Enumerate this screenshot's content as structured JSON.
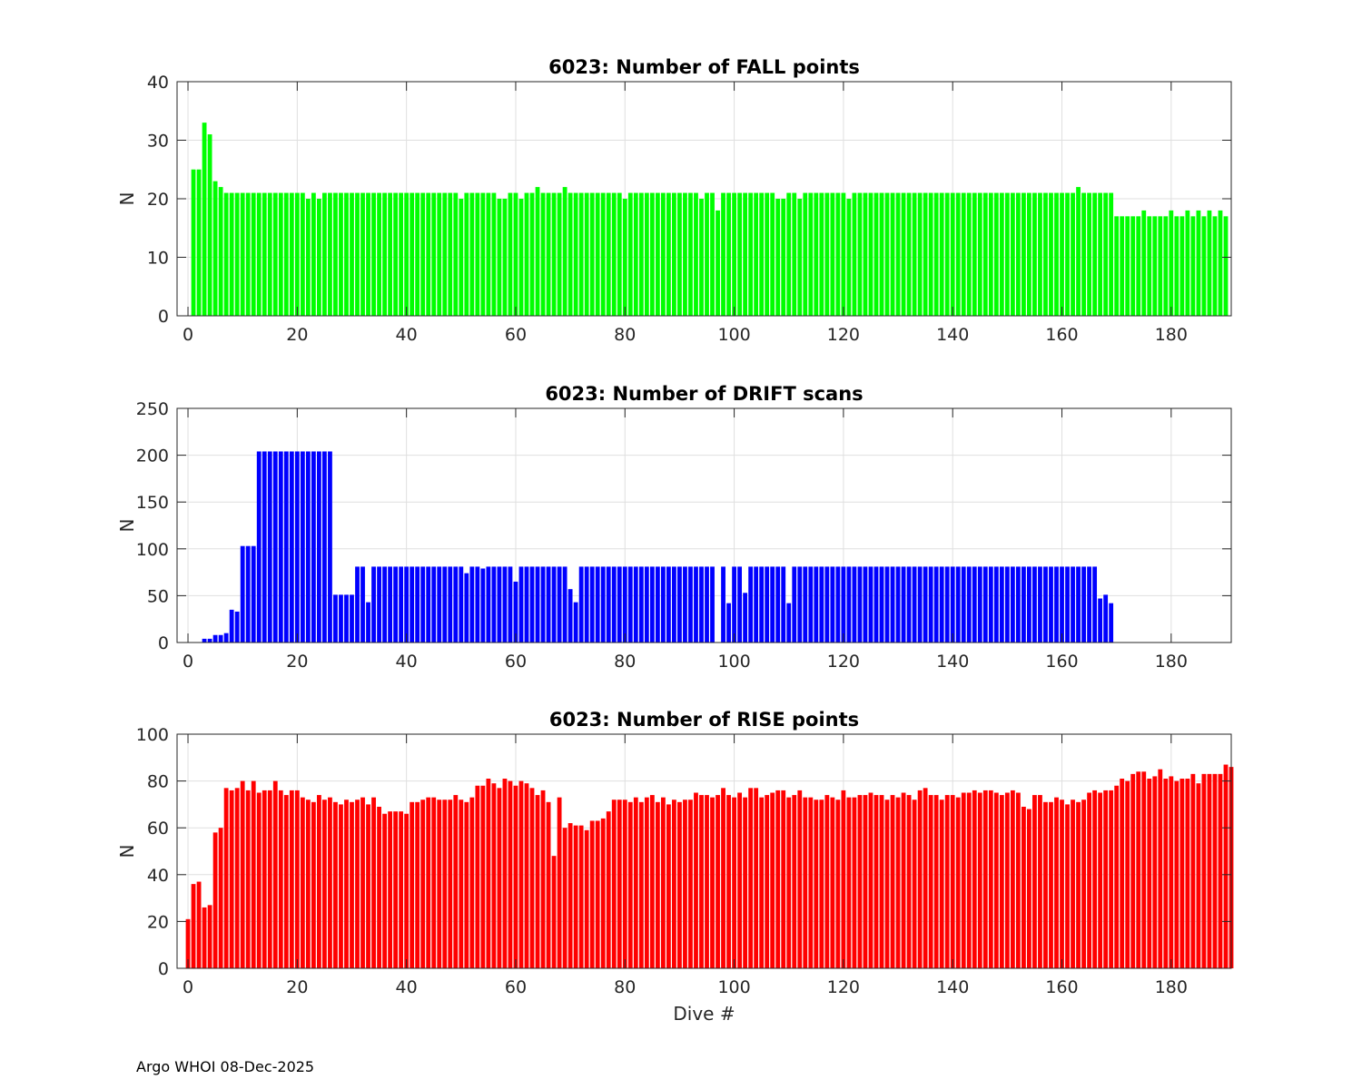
{
  "footer": "Argo WHOI 08-Dec-2025",
  "chart_data": [
    {
      "type": "bar",
      "title": "6023: Number of FALL points",
      "xlabel": "",
      "ylabel": "N",
      "xlim": [
        -2,
        191
      ],
      "ylim": [
        0,
        40
      ],
      "xticks": [
        0,
        20,
        40,
        60,
        80,
        100,
        120,
        140,
        160,
        180
      ],
      "yticks": [
        0,
        10,
        20,
        30,
        40
      ],
      "grid": true,
      "color": "#00ff00",
      "x_start": 1,
      "values": [
        25,
        25,
        33,
        31,
        23,
        22,
        21,
        21,
        21,
        21,
        21,
        21,
        21,
        21,
        21,
        21,
        21,
        21,
        21,
        21,
        21,
        20,
        21,
        20,
        21,
        21,
        21,
        21,
        21,
        21,
        21,
        21,
        21,
        21,
        21,
        21,
        21,
        21,
        21,
        21,
        21,
        21,
        21,
        21,
        21,
        21,
        21,
        21,
        21,
        20,
        21,
        21,
        21,
        21,
        21,
        21,
        20,
        20,
        21,
        21,
        20,
        21,
        21,
        22,
        21,
        21,
        21,
        21,
        22,
        21,
        21,
        21,
        21,
        21,
        21,
        21,
        21,
        21,
        21,
        20,
        21,
        21,
        21,
        21,
        21,
        21,
        21,
        21,
        21,
        21,
        21,
        21,
        21,
        20,
        21,
        21,
        18,
        21,
        21,
        21,
        21,
        21,
        21,
        21,
        21,
        21,
        21,
        20,
        20,
        21,
        21,
        20,
        21,
        21,
        21,
        21,
        21,
        21,
        21,
        21,
        20,
        21,
        21,
        21,
        21,
        21,
        21,
        21,
        21,
        21,
        21,
        21,
        21,
        21,
        21,
        21,
        21,
        21,
        21,
        21,
        21,
        21,
        21,
        21,
        21,
        21,
        21,
        21,
        21,
        21,
        21,
        21,
        21,
        21,
        21,
        21,
        21,
        21,
        21,
        21,
        21,
        21,
        22,
        21,
        21,
        21,
        21,
        21,
        21,
        17,
        17,
        17,
        17,
        17,
        18,
        17,
        17,
        17,
        17,
        18,
        17,
        17,
        18,
        17,
        18,
        17,
        18,
        17,
        18,
        17
      ]
    },
    {
      "type": "bar",
      "title": "6023: Number of DRIFT scans",
      "xlabel": "",
      "ylabel": "N",
      "xlim": [
        -2,
        191
      ],
      "ylim": [
        0,
        250
      ],
      "xticks": [
        0,
        20,
        40,
        60,
        80,
        100,
        120,
        140,
        160,
        180
      ],
      "yticks": [
        0,
        50,
        100,
        150,
        200,
        250
      ],
      "grid": true,
      "color": "#0000ff",
      "x_start": 1,
      "values": [
        0,
        0,
        4,
        4,
        8,
        8,
        10,
        35,
        33,
        103,
        103,
        103,
        204,
        204,
        204,
        204,
        204,
        204,
        204,
        204,
        204,
        204,
        204,
        204,
        204,
        204,
        51,
        51,
        51,
        51,
        81,
        81,
        43,
        81,
        81,
        81,
        81,
        81,
        81,
        81,
        81,
        81,
        81,
        81,
        81,
        81,
        81,
        81,
        81,
        81,
        74,
        81,
        81,
        79,
        81,
        81,
        81,
        81,
        81,
        65,
        81,
        81,
        81,
        81,
        81,
        81,
        81,
        81,
        81,
        57,
        43,
        81,
        81,
        81,
        81,
        81,
        81,
        81,
        81,
        81,
        81,
        81,
        81,
        81,
        81,
        81,
        81,
        81,
        81,
        81,
        81,
        81,
        81,
        81,
        81,
        81,
        0,
        81,
        42,
        81,
        81,
        53,
        81,
        81,
        81,
        81,
        81,
        81,
        81,
        42,
        81,
        81,
        81,
        81,
        81,
        81,
        81,
        81,
        81,
        81,
        81,
        81,
        81,
        81,
        81,
        81,
        81,
        81,
        81,
        81,
        81,
        81,
        81,
        81,
        81,
        81,
        81,
        81,
        81,
        81,
        81,
        81,
        81,
        81,
        81,
        81,
        81,
        81,
        81,
        81,
        81,
        81,
        81,
        81,
        81,
        81,
        81,
        81,
        81,
        81,
        81,
        81,
        81,
        81,
        81,
        81,
        47,
        51,
        42
      ]
    },
    {
      "type": "bar",
      "title": "6023: Number of RISE points",
      "xlabel": "Dive #",
      "ylabel": "N",
      "xlim": [
        -2,
        191
      ],
      "ylim": [
        0,
        100
      ],
      "xticks": [
        0,
        20,
        40,
        60,
        80,
        100,
        120,
        140,
        160,
        180
      ],
      "yticks": [
        0,
        20,
        40,
        60,
        80,
        100
      ],
      "grid": true,
      "color": "#ff0000",
      "x_start": 0,
      "values": [
        21,
        36,
        37,
        26,
        27,
        58,
        60,
        77,
        76,
        77,
        80,
        76,
        80,
        75,
        76,
        76,
        80,
        76,
        74,
        76,
        76,
        73,
        72,
        71,
        74,
        72,
        73,
        71,
        70,
        72,
        71,
        72,
        73,
        70,
        73,
        69,
        66,
        67,
        67,
        67,
        66,
        71,
        71,
        72,
        73,
        73,
        72,
        72,
        72,
        74,
        72,
        71,
        73,
        78,
        78,
        81,
        79,
        77,
        81,
        80,
        78,
        80,
        79,
        77,
        74,
        76,
        71,
        48,
        73,
        60,
        62,
        61,
        61,
        59,
        63,
        63,
        64,
        67,
        72,
        72,
        72,
        71,
        73,
        71,
        73,
        74,
        71,
        73,
        70,
        72,
        71,
        72,
        72,
        75,
        74,
        74,
        73,
        74,
        77,
        74,
        73,
        75,
        73,
        77,
        77,
        73,
        74,
        75,
        76,
        76,
        73,
        74,
        76,
        73,
        73,
        72,
        72,
        74,
        73,
        72,
        76,
        73,
        73,
        74,
        74,
        75,
        74,
        74,
        72,
        74,
        73,
        75,
        74,
        72,
        76,
        77,
        74,
        74,
        72,
        74,
        74,
        73,
        75,
        75,
        76,
        75,
        76,
        76,
        75,
        74,
        75,
        76,
        75,
        69,
        68,
        74,
        74,
        71,
        71,
        73,
        72,
        70,
        72,
        71,
        72,
        75,
        76,
        75,
        76,
        76,
        78,
        81,
        80,
        83,
        84,
        84,
        81,
        82,
        85,
        81,
        82,
        80,
        81,
        81,
        83,
        79,
        83,
        83,
        83,
        83,
        87,
        86
      ]
    }
  ]
}
